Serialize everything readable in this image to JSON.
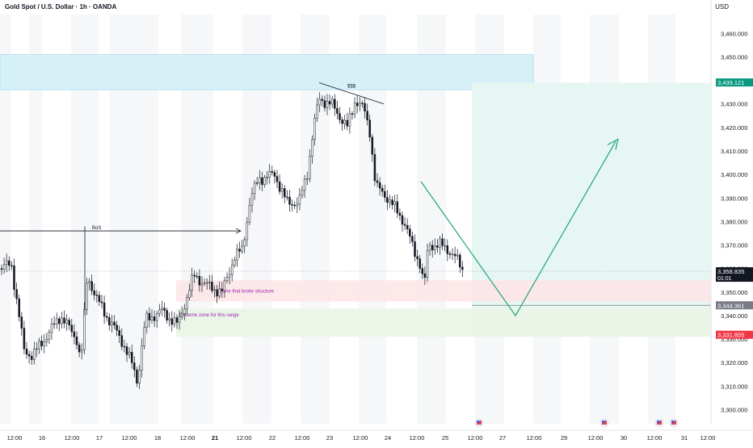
{
  "header": {
    "symbol_title": "Gold Spot / U.S. Dollar · 1h · OANDA",
    "currency": "USD"
  },
  "chart_data": {
    "type": "candlestick",
    "title": "Gold Spot / U.S. Dollar · 1h · OANDA",
    "price_axis": {
      "unit": "USD",
      "ticks": [
        3460,
        3450,
        3440,
        3430,
        3420,
        3410,
        3400,
        3390,
        3380,
        3370,
        3360,
        3350,
        3340,
        3330,
        3320,
        3310,
        3300
      ],
      "tick_labels": [
        "3,460.000",
        "3,450.000",
        "3,440.000",
        "3,430.000",
        "3,420.000",
        "3,410.000",
        "3,400.000",
        "3,390.000",
        "3,380.000",
        "3,370.000",
        "3,360.000",
        "3,350.000",
        "3,340.000",
        "3,330.000",
        "3,320.000",
        "3,310.000",
        "3,300.000"
      ],
      "range": [
        3294,
        3468
      ]
    },
    "time_axis": {
      "labels": [
        "12:00",
        "16",
        "12:00",
        "17",
        "12:00",
        "18",
        "12:00",
        "21",
        "12:00",
        "22",
        "12:00",
        "23",
        "12:00",
        "24",
        "12:00",
        "25",
        "12:00",
        "27",
        "12:00",
        "29",
        "12:00",
        "30",
        "12:00",
        "31",
        "12:00"
      ],
      "bold": [
        "21"
      ]
    },
    "price_labels": [
      {
        "value": 3439.121,
        "text": "3,439.121",
        "color": "#089981"
      },
      {
        "value": 3358.835,
        "text": "3,358.835",
        "sub": "01:01",
        "color": "#131722"
      },
      {
        "value": 3344.361,
        "text": "3,344.361",
        "color": "#787b86"
      },
      {
        "value": 3331.855,
        "text": "3,331.855",
        "color": "#f23645"
      }
    ],
    "zones": [
      {
        "name": "supply",
        "from": 3436,
        "to": 3451,
        "color": "#d6f0f7"
      },
      {
        "name": "zone-broke-structure",
        "from": 3346,
        "to": 3355,
        "label": "Zone that broke structure",
        "color": "#fde5e8"
      },
      {
        "name": "extreme-zone",
        "from": 3331,
        "to": 3343,
        "label": "Extreme zone for this range",
        "color": "#eaf5e6"
      },
      {
        "name": "target",
        "from": 3331,
        "to": 3439,
        "color": "#e6f6f2"
      }
    ],
    "annotations": {
      "bos": "BoS",
      "liquidity": "$$$",
      "projection": [
        3397,
        3340,
        3414
      ]
    },
    "event_markers": 4
  }
}
